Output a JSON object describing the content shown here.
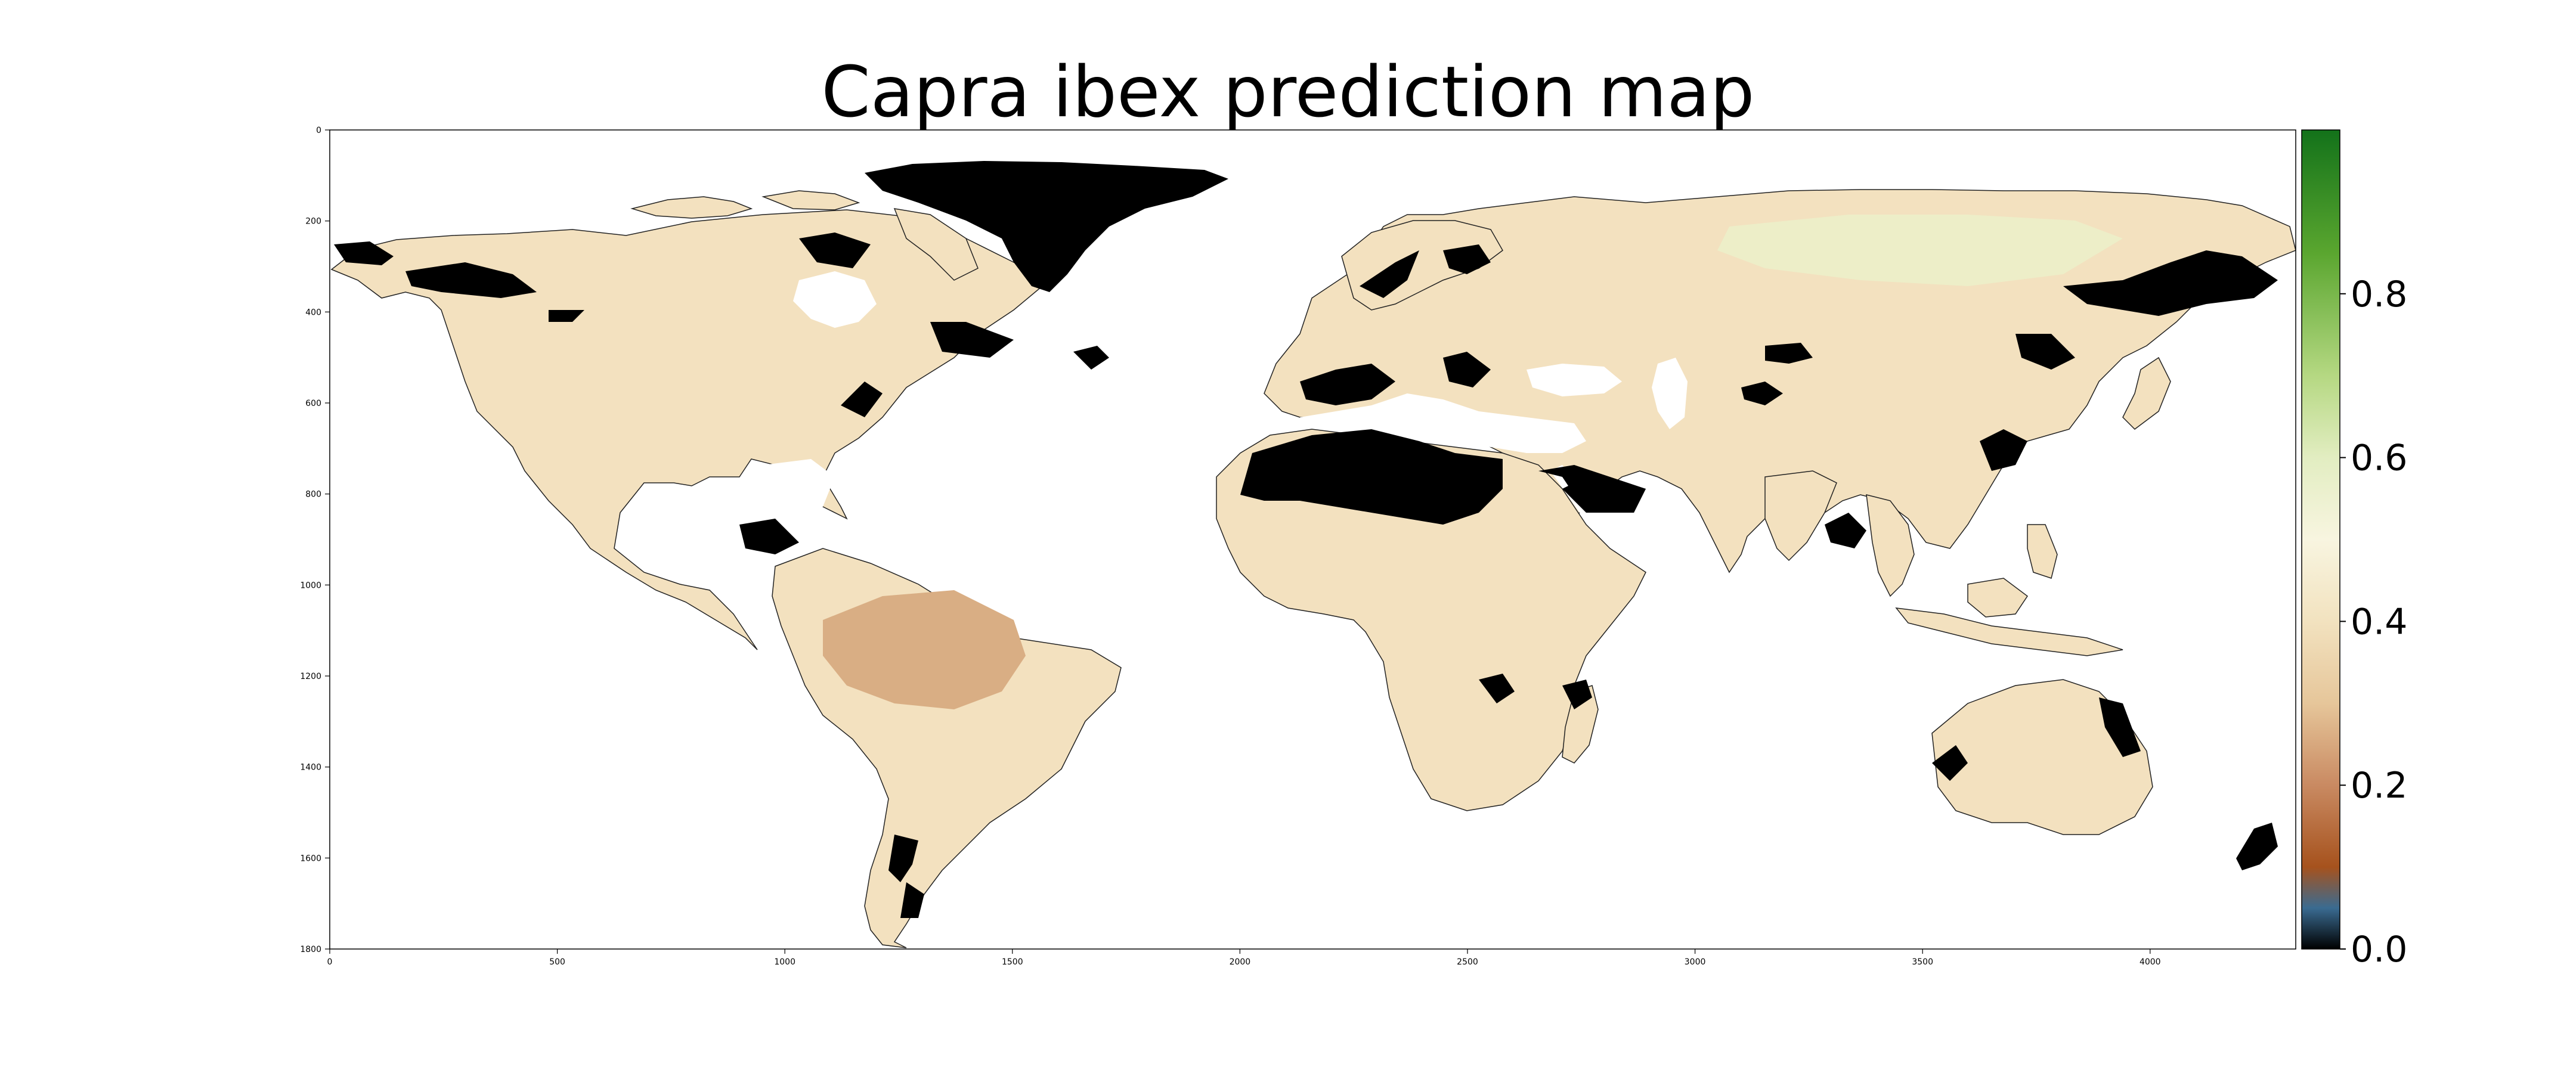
{
  "title": "Capra ibex prediction map",
  "map": {
    "x_axis": {
      "range": [
        0,
        4320
      ],
      "ticks": [
        "0",
        "500",
        "1000",
        "1500",
        "2000",
        "2500",
        "3000",
        "3500",
        "4000"
      ]
    },
    "y_axis": {
      "range": [
        0,
        1800
      ],
      "ticks": [
        "0",
        "200",
        "400",
        "600",
        "800",
        "1000",
        "1200",
        "1400",
        "1600",
        "1800"
      ]
    },
    "colors": {
      "land": "#f3e1bf",
      "land_high": "#ecf0c9",
      "land_low": "#d9ae84",
      "unsuitable": "#000000",
      "ocean": "#ffffff",
      "coast": "#222222"
    }
  },
  "colorbar": {
    "range": [
      0.0,
      1.0
    ],
    "ticks": [
      "0.0",
      "0.2",
      "0.4",
      "0.6",
      "0.8"
    ],
    "tick_values": [
      0.0,
      0.2,
      0.4,
      0.6,
      0.8
    ],
    "stops": [
      {
        "value": 0.0,
        "color": "#000000"
      },
      {
        "value": 0.05,
        "color": "#3a6b91"
      },
      {
        "value": 0.1,
        "color": "#a6521d"
      },
      {
        "value": 0.2,
        "color": "#c98a62"
      },
      {
        "value": 0.3,
        "color": "#e6c69a"
      },
      {
        "value": 0.4,
        "color": "#f2e2bf"
      },
      {
        "value": 0.5,
        "color": "#f8f5e0"
      },
      {
        "value": 0.6,
        "color": "#e2edc1"
      },
      {
        "value": 0.7,
        "color": "#b5d882"
      },
      {
        "value": 0.85,
        "color": "#5aa62f"
      },
      {
        "value": 1.0,
        "color": "#13721a"
      }
    ]
  }
}
